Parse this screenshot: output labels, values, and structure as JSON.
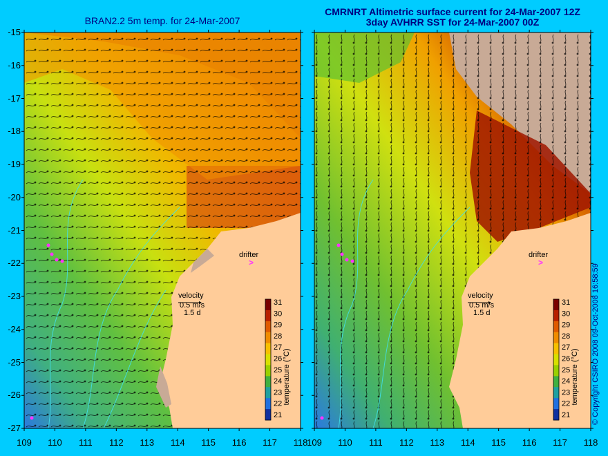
{
  "titles": {
    "left": "BRAN2.2 5m temp. for 24-Mar-2007",
    "right_line1": "CMRNRT Altimetric surface current for 24-Mar-2007 12Z",
    "right_line2": "3day AVHRR SST for 24-Mar-2007 00Z"
  },
  "axes": {
    "lat_ticks": [
      "-15",
      "-16",
      "-17",
      "-18",
      "-19",
      "-20",
      "-21",
      "-22",
      "-23",
      "-24",
      "-25",
      "-26",
      "-27"
    ],
    "lon_ticks_left": [
      "109",
      "110",
      "111",
      "112",
      "113",
      "114",
      "115",
      "116",
      "117",
      "118"
    ],
    "lon_ticks_right": [
      "109",
      "110",
      "111",
      "112",
      "113",
      "114",
      "115",
      "116",
      "117",
      "118"
    ],
    "lat_range": [
      -27,
      -15
    ],
    "lon_range": [
      109,
      118
    ]
  },
  "legend": {
    "velocity_label": "velocity",
    "velocity_scale": "0.5 m/s",
    "time_scale": "1.5 d",
    "drifter_label": "drifter",
    "drifter_marker": ">",
    "colorbar_title": "temperature (°C)",
    "colorbar_ticks": [
      "31",
      "30",
      "29",
      "28",
      "27",
      "26",
      "25",
      "24",
      "23",
      "22",
      "21"
    ],
    "colorbar_colors": [
      "#7a0000",
      "#b82000",
      "#e05a00",
      "#f08c00",
      "#f7c000",
      "#d8e000",
      "#9ad000",
      "#40b040",
      "#20a0a0",
      "#2070e0",
      "#1030a0"
    ]
  },
  "copyright": "© Copyright CSIRO 2008 09-Oct-2008 16:58:59",
  "colors": {
    "background": "#00ccff",
    "land": "#ffcc99",
    "land_grey": "#c8aa96",
    "title": "#000080",
    "contour": "#40e0f0",
    "drifter": "#ff33ff"
  }
}
